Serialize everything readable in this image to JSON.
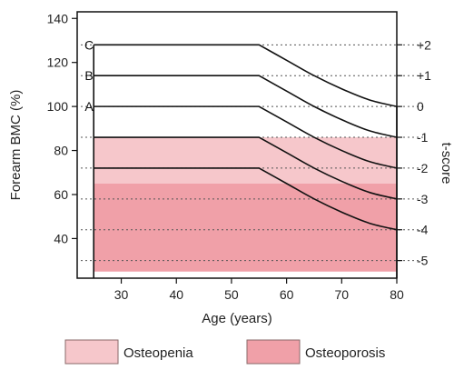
{
  "chart_data": {
    "type": "line",
    "title": "",
    "xlabel": "Age (years)",
    "ylabel": "Forearm BMC (%)",
    "ylabel_right": "t-score",
    "xlim": [
      22,
      80
    ],
    "ylim": [
      22,
      143
    ],
    "x_ticks": [
      30,
      40,
      50,
      60,
      70,
      80
    ],
    "y_ticks": [
      40,
      60,
      80,
      100,
      120,
      140
    ],
    "right_ticks": [
      {
        "label": "+2",
        "bmc": 128
      },
      {
        "label": "+1",
        "bmc": 114
      },
      {
        "label": "0",
        "bmc": 100
      },
      {
        "label": "-1",
        "bmc": 86
      },
      {
        "label": "-2",
        "bmc": 72
      },
      {
        "label": "-3",
        "bmc": 58
      },
      {
        "label": "-4",
        "bmc": 44
      },
      {
        "label": "-5",
        "bmc": 30
      }
    ],
    "data_start_age": 25,
    "plateau_end_age": 55,
    "series": [
      {
        "label": "C",
        "x": [
          25,
          55,
          60,
          65,
          70,
          75,
          80
        ],
        "y": [
          128,
          128,
          121,
          114,
          108,
          103,
          100
        ]
      },
      {
        "label": "B",
        "x": [
          25,
          55,
          60,
          65,
          70,
          75,
          80
        ],
        "y": [
          114,
          114,
          107,
          100,
          94,
          89,
          86
        ]
      },
      {
        "label": "A",
        "x": [
          25,
          55,
          60,
          65,
          70,
          75,
          80
        ],
        "y": [
          100,
          100,
          93,
          86,
          80,
          75,
          72
        ]
      },
      {
        "label": "",
        "x": [
          25,
          55,
          60,
          65,
          70,
          75,
          80
        ],
        "y": [
          86,
          86,
          79,
          72,
          66,
          61,
          58
        ]
      },
      {
        "label": "",
        "x": [
          25,
          55,
          60,
          65,
          70,
          75,
          80
        ],
        "y": [
          72,
          72,
          65,
          58,
          52,
          47,
          44
        ]
      }
    ],
    "regions": [
      {
        "name": "Osteopenia",
        "from": 65,
        "to": 86,
        "color": "#f6c7cb"
      },
      {
        "name": "Osteoporosis",
        "from": 25,
        "to": 65,
        "color": "#f0a0a8"
      }
    ],
    "legend": [
      {
        "name": "Osteopenia",
        "color": "#f6c7cb"
      },
      {
        "name": "Osteoporosis",
        "color": "#f0a0a8"
      }
    ],
    "legend_position": "bottom",
    "grid": "dotted horizontal at t-score levels"
  }
}
